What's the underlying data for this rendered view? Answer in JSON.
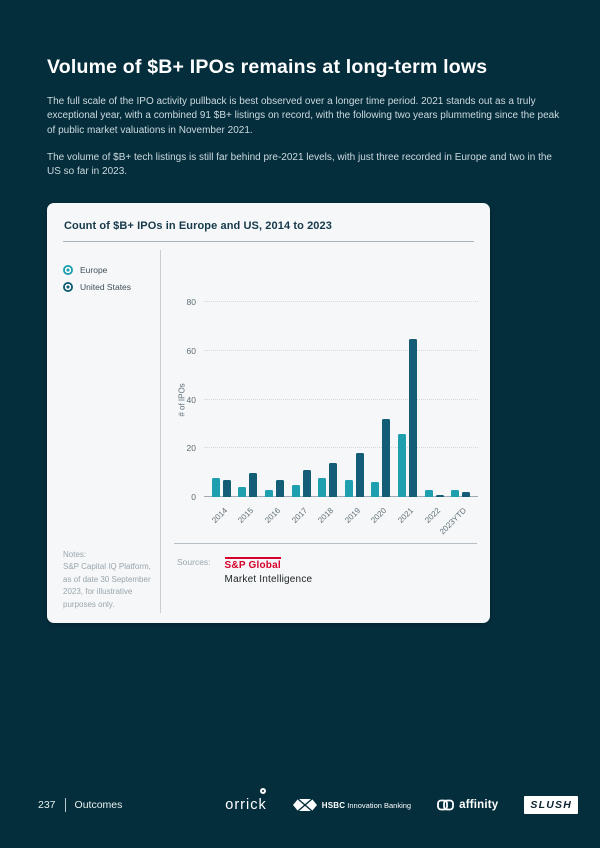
{
  "page": {
    "title": "Volume of $B+ IPOs remains at long-term lows",
    "paragraph1": "The full scale of the IPO activity pullback is best observed over a longer time period. 2021 stands out as a truly exceptional year, with a combined 91 $B+ listings on record, with the following two years plummeting since the peak of public market valuations in November 2021.",
    "paragraph2": "The volume of $B+ tech listings is still far behind pre-2021 levels, with just three recorded in Europe and two in the US so far in 2023."
  },
  "card": {
    "title": "Count of $B+ IPOs in Europe and US, 2014 to 2023",
    "notes_label": "Notes:",
    "notes_text": "S&P Capital IQ Platform, as of date 30 September 2023, for illustrative purposes only.",
    "sources_label": "Sources:",
    "sp_global_line1": "S&P Global",
    "sp_global_line2": "Market Intelligence"
  },
  "chart_data": {
    "type": "bar",
    "title": "Count of $B+ IPOs in Europe and US, 2014 to 2023",
    "categories": [
      "2014",
      "2015",
      "2016",
      "2017",
      "2018",
      "2019",
      "2020",
      "2021",
      "2022",
      "2023YTD"
    ],
    "series": [
      {
        "name": "Europe",
        "color": "#1e9faf",
        "values": [
          8,
          4,
          3,
          5,
          8,
          7,
          6,
          26,
          3,
          3
        ]
      },
      {
        "name": "United States",
        "color": "#135e76",
        "values": [
          7,
          10,
          7,
          11,
          14,
          18,
          32,
          65,
          1,
          2
        ]
      }
    ],
    "xlabel": "",
    "ylabel": "# of IPOs",
    "yticks": [
      0,
      20,
      40,
      60,
      80
    ],
    "ylim": [
      0,
      80
    ],
    "legend_position": "left",
    "grid": "horizontal-dotted"
  },
  "footer": {
    "page_number": "237",
    "section_label": "Outcomes",
    "logos": {
      "orrick": "orrick",
      "hsbc_name": "HSBC",
      "hsbc_suffix": "Innovation Banking",
      "affinity": "affinity",
      "slush": "SLUSH"
    }
  },
  "colors": {
    "background": "#052e3c",
    "card_background": "#f5f7f8",
    "europe": "#1e9faf",
    "united_states": "#135e76",
    "sp_red": "#d6002a"
  }
}
